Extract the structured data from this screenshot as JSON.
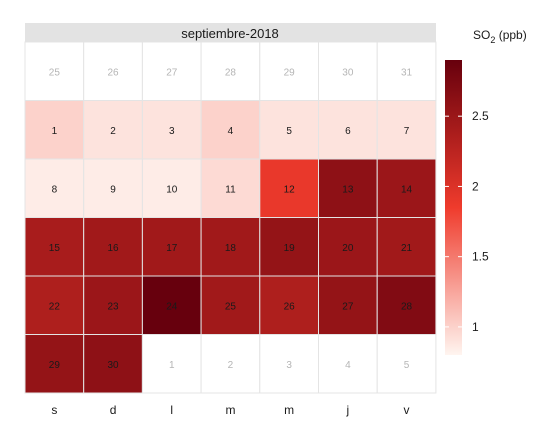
{
  "chart_data": {
    "type": "heatmap",
    "title": "septiembre-2018",
    "legend_title_base": "SO",
    "legend_title_sub": "2",
    "legend_title_unit": " (ppb)",
    "legend_ticks": [
      1,
      1.5,
      2,
      2.5
    ],
    "legend_tick_labels": [
      "1",
      "1.5",
      "2",
      "2.5"
    ],
    "value_range": [
      0.8,
      2.9
    ],
    "color_low": "#fff5f0",
    "color_mid": "#ef3b2c",
    "color_high": "#67000d",
    "weekday_labels": [
      "s",
      "d",
      "l",
      "m",
      "m",
      "j",
      "v"
    ],
    "weeks": [
      {
        "days": [
          "25",
          "26",
          "27",
          "28",
          "29",
          "30",
          "31"
        ],
        "in_month": [
          false,
          false,
          false,
          false,
          false,
          false,
          false
        ],
        "values": [
          null,
          null,
          null,
          null,
          null,
          null,
          null
        ]
      },
      {
        "days": [
          "1",
          "2",
          "3",
          "4",
          "5",
          "6",
          "7"
        ],
        "in_month": [
          true,
          true,
          true,
          true,
          true,
          true,
          true
        ],
        "values": [
          1.0,
          0.9,
          0.9,
          1.0,
          0.9,
          0.9,
          0.9
        ]
      },
      {
        "days": [
          "8",
          "9",
          "10",
          "11",
          "12",
          "13",
          "14"
        ],
        "in_month": [
          true,
          true,
          true,
          true,
          true,
          true,
          true
        ],
        "values": [
          0.85,
          0.85,
          0.85,
          0.95,
          1.9,
          2.6,
          2.5
        ]
      },
      {
        "days": [
          "15",
          "16",
          "17",
          "18",
          "19",
          "20",
          "21"
        ],
        "in_month": [
          true,
          true,
          true,
          true,
          true,
          true,
          true
        ],
        "values": [
          2.4,
          2.45,
          2.45,
          2.45,
          2.55,
          2.5,
          2.45
        ]
      },
      {
        "days": [
          "22",
          "23",
          "24",
          "25",
          "26",
          "27",
          "28"
        ],
        "in_month": [
          true,
          true,
          true,
          true,
          true,
          true,
          true
        ],
        "values": [
          2.35,
          2.5,
          2.9,
          2.45,
          2.35,
          2.55,
          2.7
        ]
      },
      {
        "days": [
          "29",
          "30",
          "1",
          "2",
          "3",
          "4",
          "5"
        ],
        "in_month": [
          true,
          true,
          false,
          false,
          false,
          false,
          false
        ],
        "values": [
          2.55,
          2.6,
          null,
          null,
          null,
          null,
          null
        ]
      }
    ]
  }
}
